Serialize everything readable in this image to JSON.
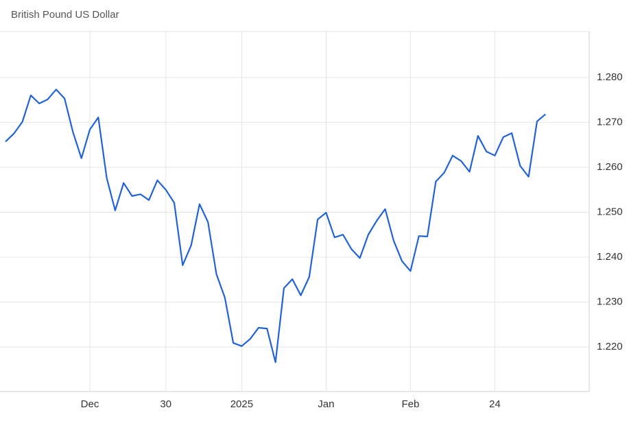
{
  "chart_data": {
    "type": "line",
    "title": "British Pound US Dollar",
    "categories": [
      null,
      null,
      null,
      null,
      null,
      null,
      null,
      null,
      null,
      null,
      "Dec",
      null,
      null,
      null,
      null,
      null,
      null,
      null,
      null,
      "30",
      null,
      null,
      null,
      null,
      null,
      null,
      null,
      null,
      "2025",
      null,
      null,
      null,
      null,
      null,
      null,
      null,
      null,
      null,
      "Jan",
      null,
      null,
      null,
      null,
      null,
      null,
      null,
      null,
      null,
      "Feb",
      null,
      null,
      null,
      null,
      null,
      null,
      null,
      null,
      null,
      "24",
      null,
      null,
      null,
      null,
      null,
      null
    ],
    "series": [
      {
        "name": "British Pound US Dollar",
        "color": "#1f62d8",
        "values": [
          1.2657,
          1.2675,
          1.2701,
          1.276,
          1.2742,
          1.2751,
          1.2773,
          1.2753,
          1.2678,
          1.262,
          1.2684,
          1.2711,
          1.2576,
          1.2504,
          1.2565,
          1.2536,
          1.254,
          1.2527,
          1.2571,
          1.255,
          1.2521,
          1.2382,
          1.2426,
          1.2518,
          1.2478,
          1.2362,
          1.231,
          1.2209,
          1.2202,
          1.2218,
          1.2243,
          1.2241,
          1.2166,
          1.2331,
          1.2351,
          1.2315,
          1.2356,
          1.2484,
          1.2499,
          1.2444,
          1.245,
          1.2418,
          1.2398,
          1.245,
          1.2481,
          1.2507,
          1.2437,
          1.2391,
          1.2369,
          1.2447,
          1.2446,
          1.2568,
          1.2588,
          1.2626,
          1.2614,
          1.259,
          1.267,
          1.2635,
          1.2626,
          1.2667,
          1.2676,
          1.2603,
          1.2579,
          1.2702,
          1.2718
        ]
      }
    ],
    "ylim": [
      1.2101,
      1.2902
    ],
    "yticks": [
      {
        "value": 1.22,
        "label": "1.220"
      },
      {
        "value": 1.23,
        "label": "1.230"
      },
      {
        "value": 1.24,
        "label": "1.240"
      },
      {
        "value": 1.25,
        "label": "1.250"
      },
      {
        "value": 1.26,
        "label": "1.260"
      },
      {
        "value": 1.27,
        "label": "1.270"
      },
      {
        "value": 1.28,
        "label": "1.280"
      }
    ],
    "grid": true
  }
}
